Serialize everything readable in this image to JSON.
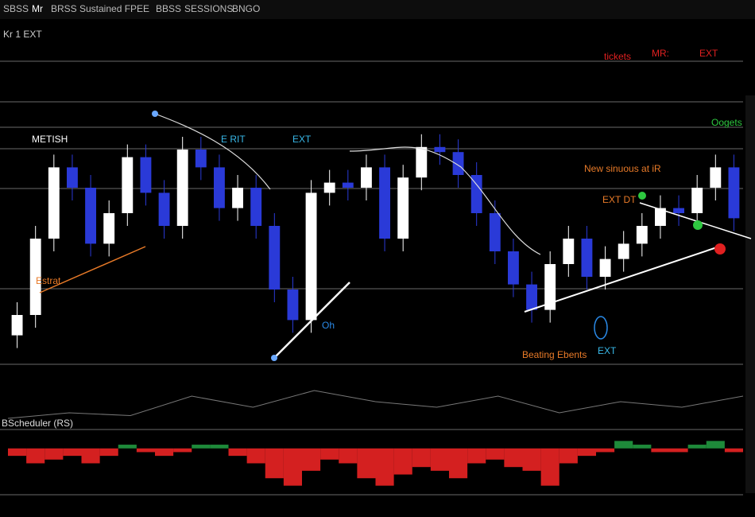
{
  "header": {
    "tabs": [
      "SBSS",
      "Mr",
      "BRSS",
      "Sustained FPEE",
      "BBSS",
      "SESSIONS",
      "BNGO"
    ],
    "subtitle": "Kr 1 EXT"
  },
  "chart_data": {
    "type": "candlestick",
    "ylim": [
      0,
      100
    ],
    "up_color": "#ffffff",
    "down_color": "#2a3ad8",
    "open": [
      12,
      20,
      50,
      78,
      70,
      48,
      60,
      82,
      68,
      55,
      85,
      78,
      62,
      70,
      55,
      30,
      18,
      68,
      72,
      70,
      78,
      50,
      74,
      86,
      84,
      75,
      60,
      45,
      32,
      22,
      40,
      50,
      35,
      42,
      48,
      55,
      62,
      60,
      70,
      78
    ],
    "high": [
      25,
      55,
      83,
      83,
      75,
      65,
      87,
      87,
      73,
      90,
      90,
      83,
      75,
      75,
      60,
      35,
      73,
      77,
      77,
      83,
      83,
      79,
      91,
      91,
      89,
      80,
      65,
      50,
      37,
      45,
      55,
      55,
      47,
      53,
      60,
      67,
      67,
      75,
      83,
      83
    ],
    "low": [
      7,
      15,
      45,
      65,
      43,
      43,
      55,
      63,
      50,
      50,
      73,
      57,
      57,
      50,
      25,
      13,
      13,
      63,
      65,
      65,
      45,
      45,
      69,
      79,
      70,
      55,
      40,
      27,
      17,
      17,
      35,
      30,
      30,
      37,
      43,
      50,
      55,
      55,
      65,
      53
    ],
    "close": [
      20,
      50,
      78,
      70,
      48,
      60,
      82,
      68,
      55,
      85,
      78,
      62,
      70,
      55,
      30,
      18,
      68,
      72,
      70,
      78,
      50,
      74,
      86,
      84,
      75,
      60,
      45,
      32,
      22,
      40,
      50,
      35,
      42,
      48,
      55,
      62,
      60,
      70,
      78,
      58
    ],
    "trend": {
      "values": [
        2,
        3,
        2.5,
        6,
        4,
        7,
        5,
        4,
        6,
        3,
        5,
        4,
        6
      ],
      "ylim": [
        0,
        10
      ],
      "color": "#777777"
    },
    "oscillator": {
      "title": "BScheduler (RS)",
      "ylim": [
        -6,
        2
      ],
      "up_color": "#1e8a3a",
      "down_color": "#d42020",
      "values": [
        -1,
        -2,
        -1.5,
        -1,
        -2,
        -1,
        0.5,
        -0.5,
        -1,
        -0.5,
        0.5,
        0.5,
        -1,
        -2,
        -4,
        -5,
        -3,
        -1.5,
        -2,
        -4,
        -5,
        -3.5,
        -2.5,
        -3,
        -4,
        -2,
        -1.5,
        -2.5,
        -3,
        -5,
        -2,
        -1,
        -0.5,
        1,
        0.5,
        -0.5,
        -0.5,
        0.5,
        1,
        -0.5
      ]
    },
    "annotations": [
      {
        "text": "tickets",
        "color": "#e02020"
      },
      {
        "text": "MR:",
        "color": "#e02020"
      },
      {
        "text": "EXT",
        "color": "#e02020"
      },
      {
        "text": "METISH",
        "color": "#ffffff"
      },
      {
        "text": "E RIT",
        "color": "#38b8e8"
      },
      {
        "text": "EXT",
        "color": "#38b8e8"
      },
      {
        "text": "Oogets",
        "color": "#2ec840"
      },
      {
        "text": "New sinuous at iR",
        "color": "#e87a28"
      },
      {
        "text": "EXT DT",
        "color": "#e87a28"
      },
      {
        "text": "Estrat",
        "color": "#e87a28"
      },
      {
        "text": "Oh",
        "color": "#2a8ae8"
      },
      {
        "text": "Beating Ebents",
        "color": "#e87a28"
      },
      {
        "text": "EXT",
        "color": "#38b8e8"
      }
    ]
  }
}
